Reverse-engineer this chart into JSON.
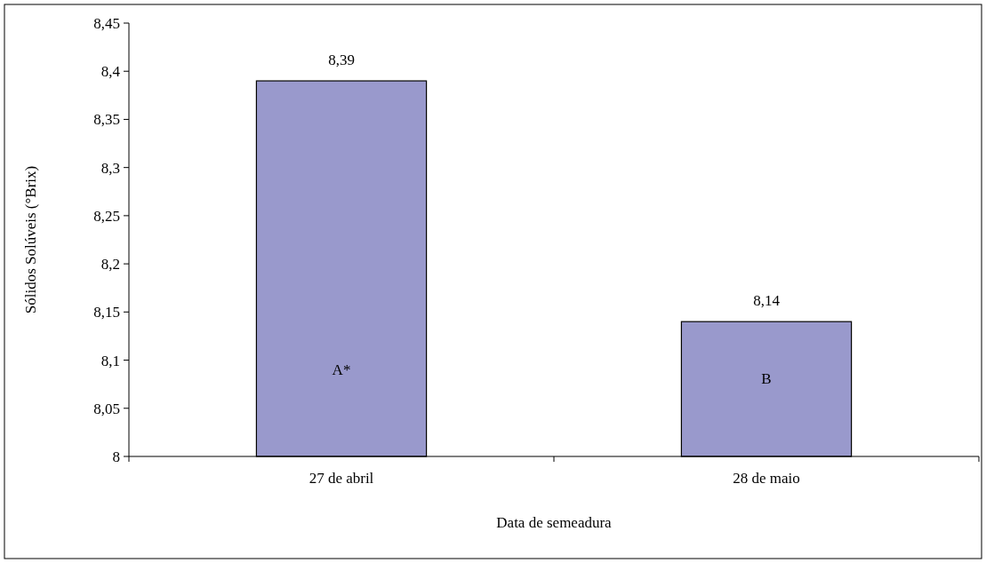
{
  "chart_data": {
    "type": "bar",
    "xlabel": "Data de semeadura",
    "ylabel": "Sólidos Solúveis (°Brix)",
    "categories": [
      "27 de abril",
      "28 de maio"
    ],
    "values": [
      8.39,
      8.14
    ],
    "color": "#9999cc",
    "value_labels": [
      "8,39",
      "8,14"
    ],
    "ylim": [
      8,
      8.45
    ],
    "yticks": [
      8,
      {
        "value": 8.05,
        "label": "8,05"
      },
      {
        "value": 8.1,
        "label": "8,1"
      },
      {
        "value": 8.15,
        "label": "8,15"
      },
      {
        "value": 8.2,
        "label": "8,2"
      },
      {
        "value": 8.25,
        "label": "8,25"
      },
      {
        "value": 8.3,
        "label": "8,3"
      },
      {
        "value": 8.35,
        "label": "8,35"
      },
      {
        "value": 8.4,
        "label": "8,4"
      },
      {
        "value": 8.45,
        "label": "8,45"
      }
    ],
    "annotations": [
      "A*",
      "B"
    ]
  }
}
